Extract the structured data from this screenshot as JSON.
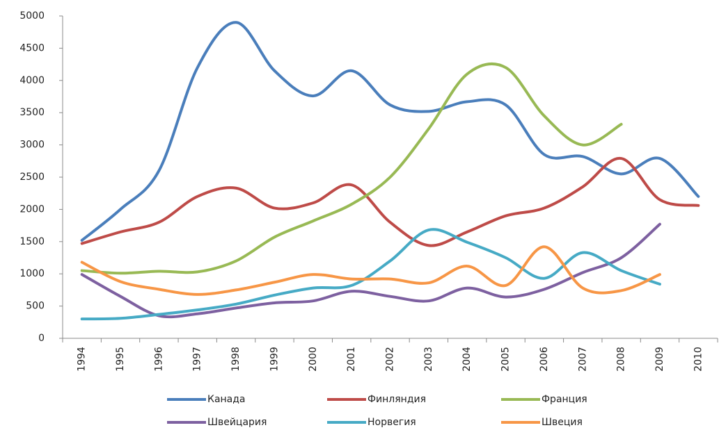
{
  "chart_data": {
    "type": "line",
    "categories": [
      "1994",
      "1995",
      "1996",
      "1997",
      "1998",
      "1999",
      "2000",
      "2001",
      "2002",
      "2003",
      "2004",
      "2005",
      "2006",
      "2007",
      "2008",
      "2009",
      "2010"
    ],
    "series": [
      {
        "name": "Канада",
        "color": "#4a7ebb",
        "values": [
          1520,
          2000,
          2600,
          4200,
          4900,
          4150,
          3760,
          4150,
          3620,
          3520,
          3670,
          3620,
          2850,
          2820,
          2550,
          2790,
          2200
        ]
      },
      {
        "name": "Финляндия",
        "color": "#be4b48",
        "values": [
          1470,
          1650,
          1800,
          2200,
          2330,
          2020,
          2100,
          2380,
          1800,
          1440,
          1650,
          1900,
          2020,
          2350,
          2790,
          2150,
          2060
        ]
      },
      {
        "name": "Франция",
        "color": "#98b954",
        "values": [
          1050,
          1010,
          1040,
          1030,
          1200,
          1570,
          1820,
          2080,
          2500,
          3250,
          4100,
          4200,
          3450,
          3000,
          3320,
          null,
          null
        ]
      },
      {
        "name": "Швейцария",
        "color": "#7d60a0",
        "values": [
          990,
          650,
          350,
          380,
          470,
          550,
          580,
          730,
          650,
          580,
          780,
          640,
          760,
          1020,
          1250,
          1770,
          null
        ]
      },
      {
        "name": "Норвегия",
        "color": "#46aac5",
        "values": [
          300,
          310,
          370,
          440,
          530,
          670,
          780,
          820,
          1200,
          1680,
          1490,
          1250,
          930,
          1330,
          1050,
          840,
          null
        ]
      },
      {
        "name": "Швеция",
        "color": "#f79646",
        "values": [
          1180,
          880,
          760,
          680,
          750,
          870,
          990,
          920,
          920,
          860,
          1120,
          820,
          1420,
          780,
          740,
          990,
          null
        ]
      }
    ],
    "ylim": [
      0,
      5000
    ],
    "yticks": [
      0,
      500,
      1000,
      1500,
      2000,
      2500,
      3000,
      3500,
      4000,
      4500,
      5000
    ],
    "grid": false,
    "legend": "bottom",
    "smooth": true
  }
}
